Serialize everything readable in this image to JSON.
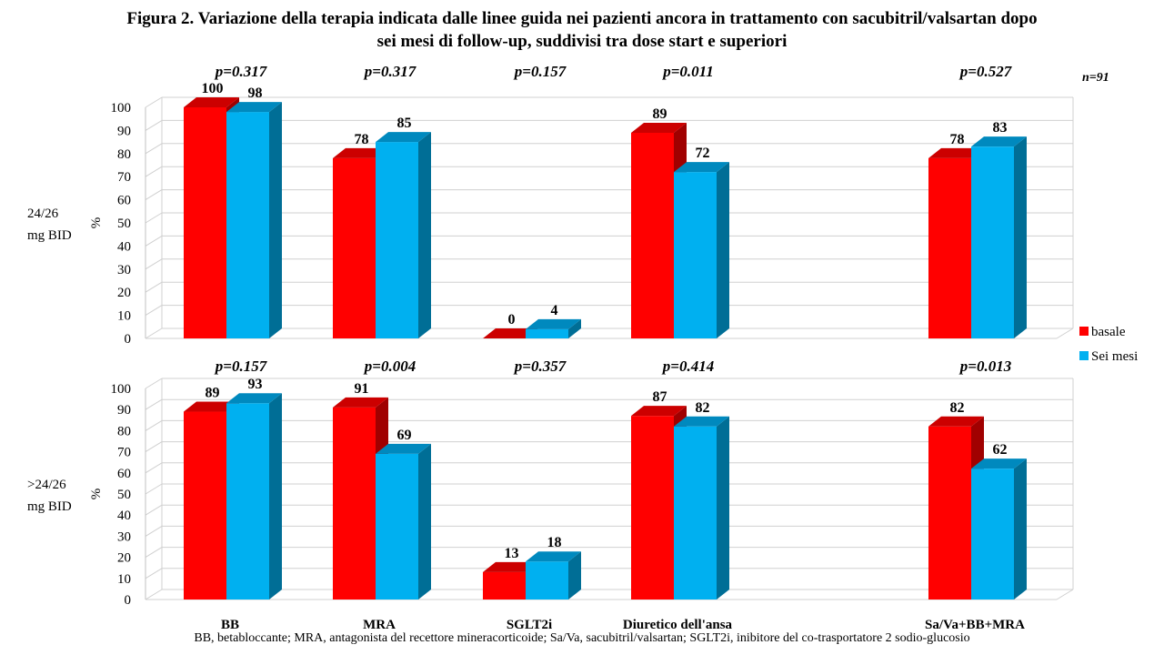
{
  "title_line1": "Figura 2. Variazione della terapia indicata dalle linee guida nei pazienti ancora in trattamento con sacubitril/valsartan dopo",
  "title_line2": "sei mesi di follow-up, suddivisi tra dose start e superiori",
  "footnote": "BB, betabloccante; MRA, antagonista del recettore mineracorticoide; Sa/Va, sacubitril/valsartan; SGLT2i, inibitore del co-trasportatore 2 sodio-glucosio",
  "n_label": "n=91",
  "colors": {
    "basale": "#ff0000",
    "sei_mesi": "#00b0f0"
  },
  "chart_data": {
    "type": "bar",
    "categories": [
      "BB",
      "MRA",
      "SGLT2i",
      "Diuretico dell'ansa",
      "Sa/Va+BB+MRA"
    ],
    "legend": [
      "basale",
      "Sei mesi"
    ],
    "legend_position": "right",
    "ylabel": "%",
    "ylim": [
      0,
      100
    ],
    "yticks": [
      0,
      10,
      20,
      30,
      40,
      50,
      60,
      70,
      80,
      90,
      100
    ],
    "grid": true,
    "panels": [
      {
        "label": "24/26\nmg BID",
        "series": [
          {
            "name": "basale",
            "values": [
              100,
              78,
              0,
              89,
              78
            ]
          },
          {
            "name": "Sei mesi",
            "values": [
              98,
              85,
              4,
              72,
              83
            ]
          }
        ],
        "p_values": [
          "p=0.317",
          "p=0.317",
          "p=0.157",
          "p=0.011",
          "p=0.527"
        ]
      },
      {
        "label": ">24/26\nmg BID",
        "series": [
          {
            "name": "basale",
            "values": [
              89,
              91,
              13,
              87,
              82
            ]
          },
          {
            "name": "Sei mesi",
            "values": [
              93,
              69,
              18,
              82,
              62
            ]
          }
        ],
        "p_values": [
          "p=0.157",
          "p=0.004",
          "p=0.357",
          "p=0.414",
          "p=0.013"
        ]
      }
    ]
  }
}
